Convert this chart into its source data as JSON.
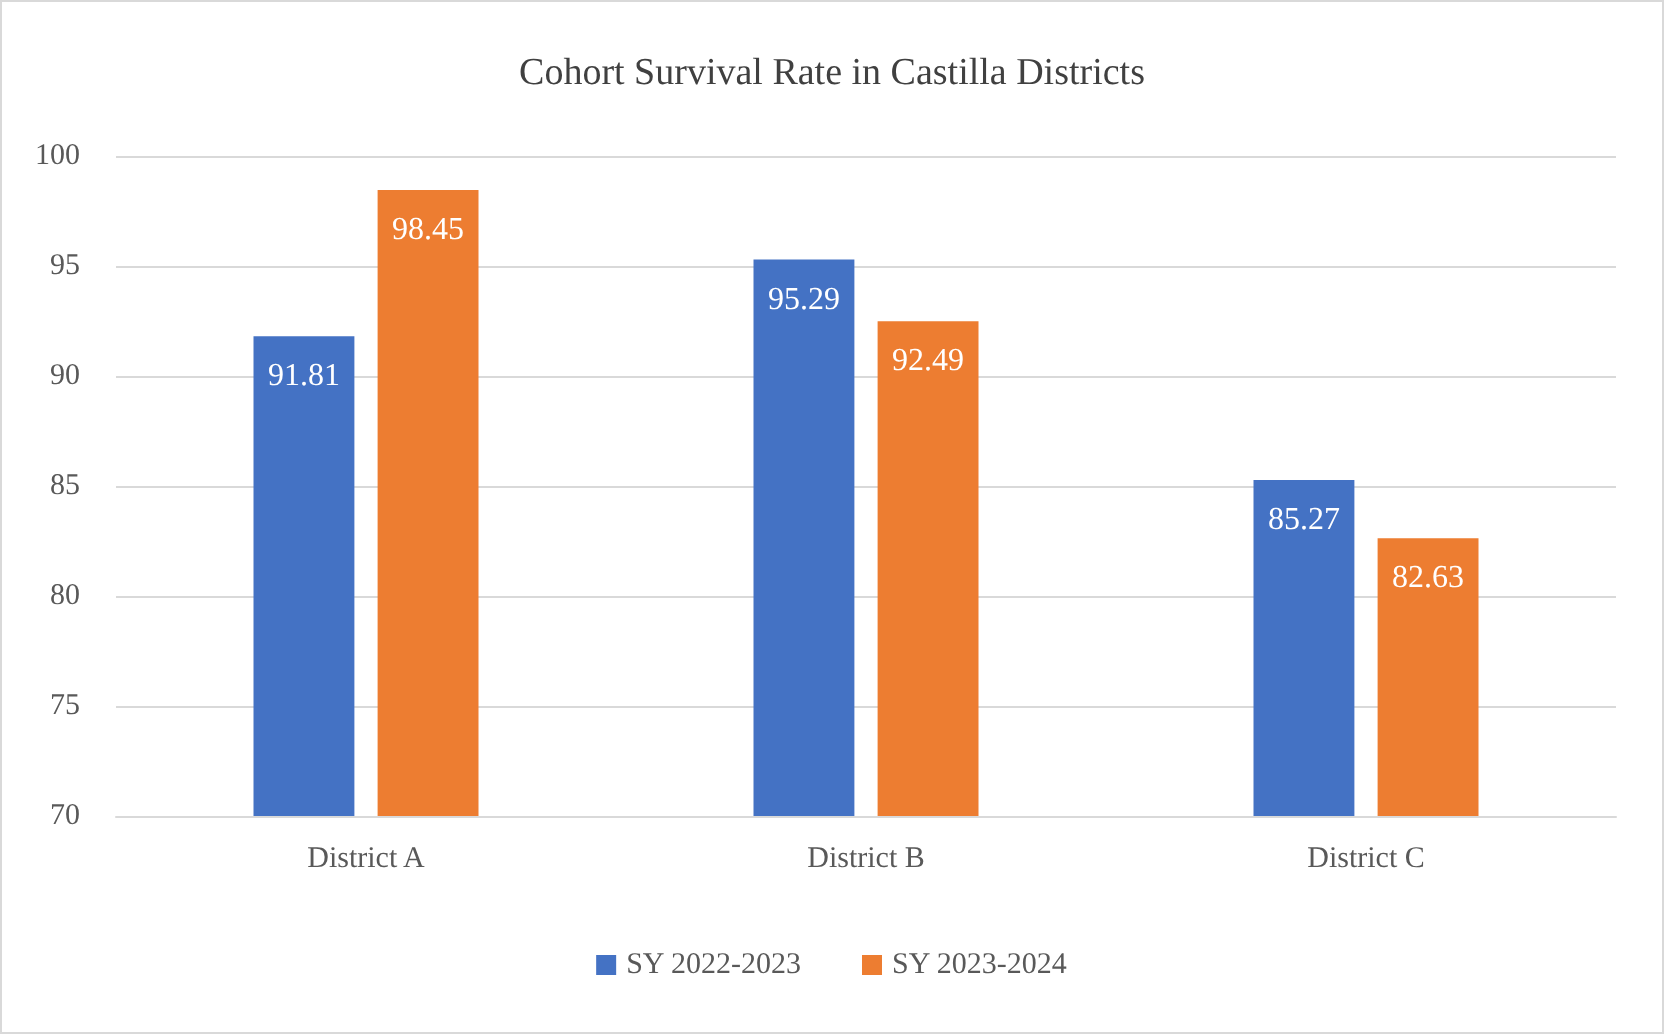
{
  "chart_data": {
    "type": "bar",
    "title": "Cohort Survival Rate in Castilla Districts",
    "categories": [
      "District A",
      "District B",
      "District C"
    ],
    "series": [
      {
        "name": "SY 2022-2023",
        "color": "#4472c4",
        "values": [
          91.81,
          95.29,
          85.27
        ]
      },
      {
        "name": "SY 2023-2024",
        "color": "#ed7d31",
        "values": [
          98.45,
          92.49,
          82.63
        ]
      }
    ],
    "ylim": [
      70,
      100
    ],
    "yticks": [
      70,
      75,
      80,
      85,
      90,
      95,
      100
    ],
    "grid": "y",
    "legend": "bottom",
    "data_labels": true
  }
}
